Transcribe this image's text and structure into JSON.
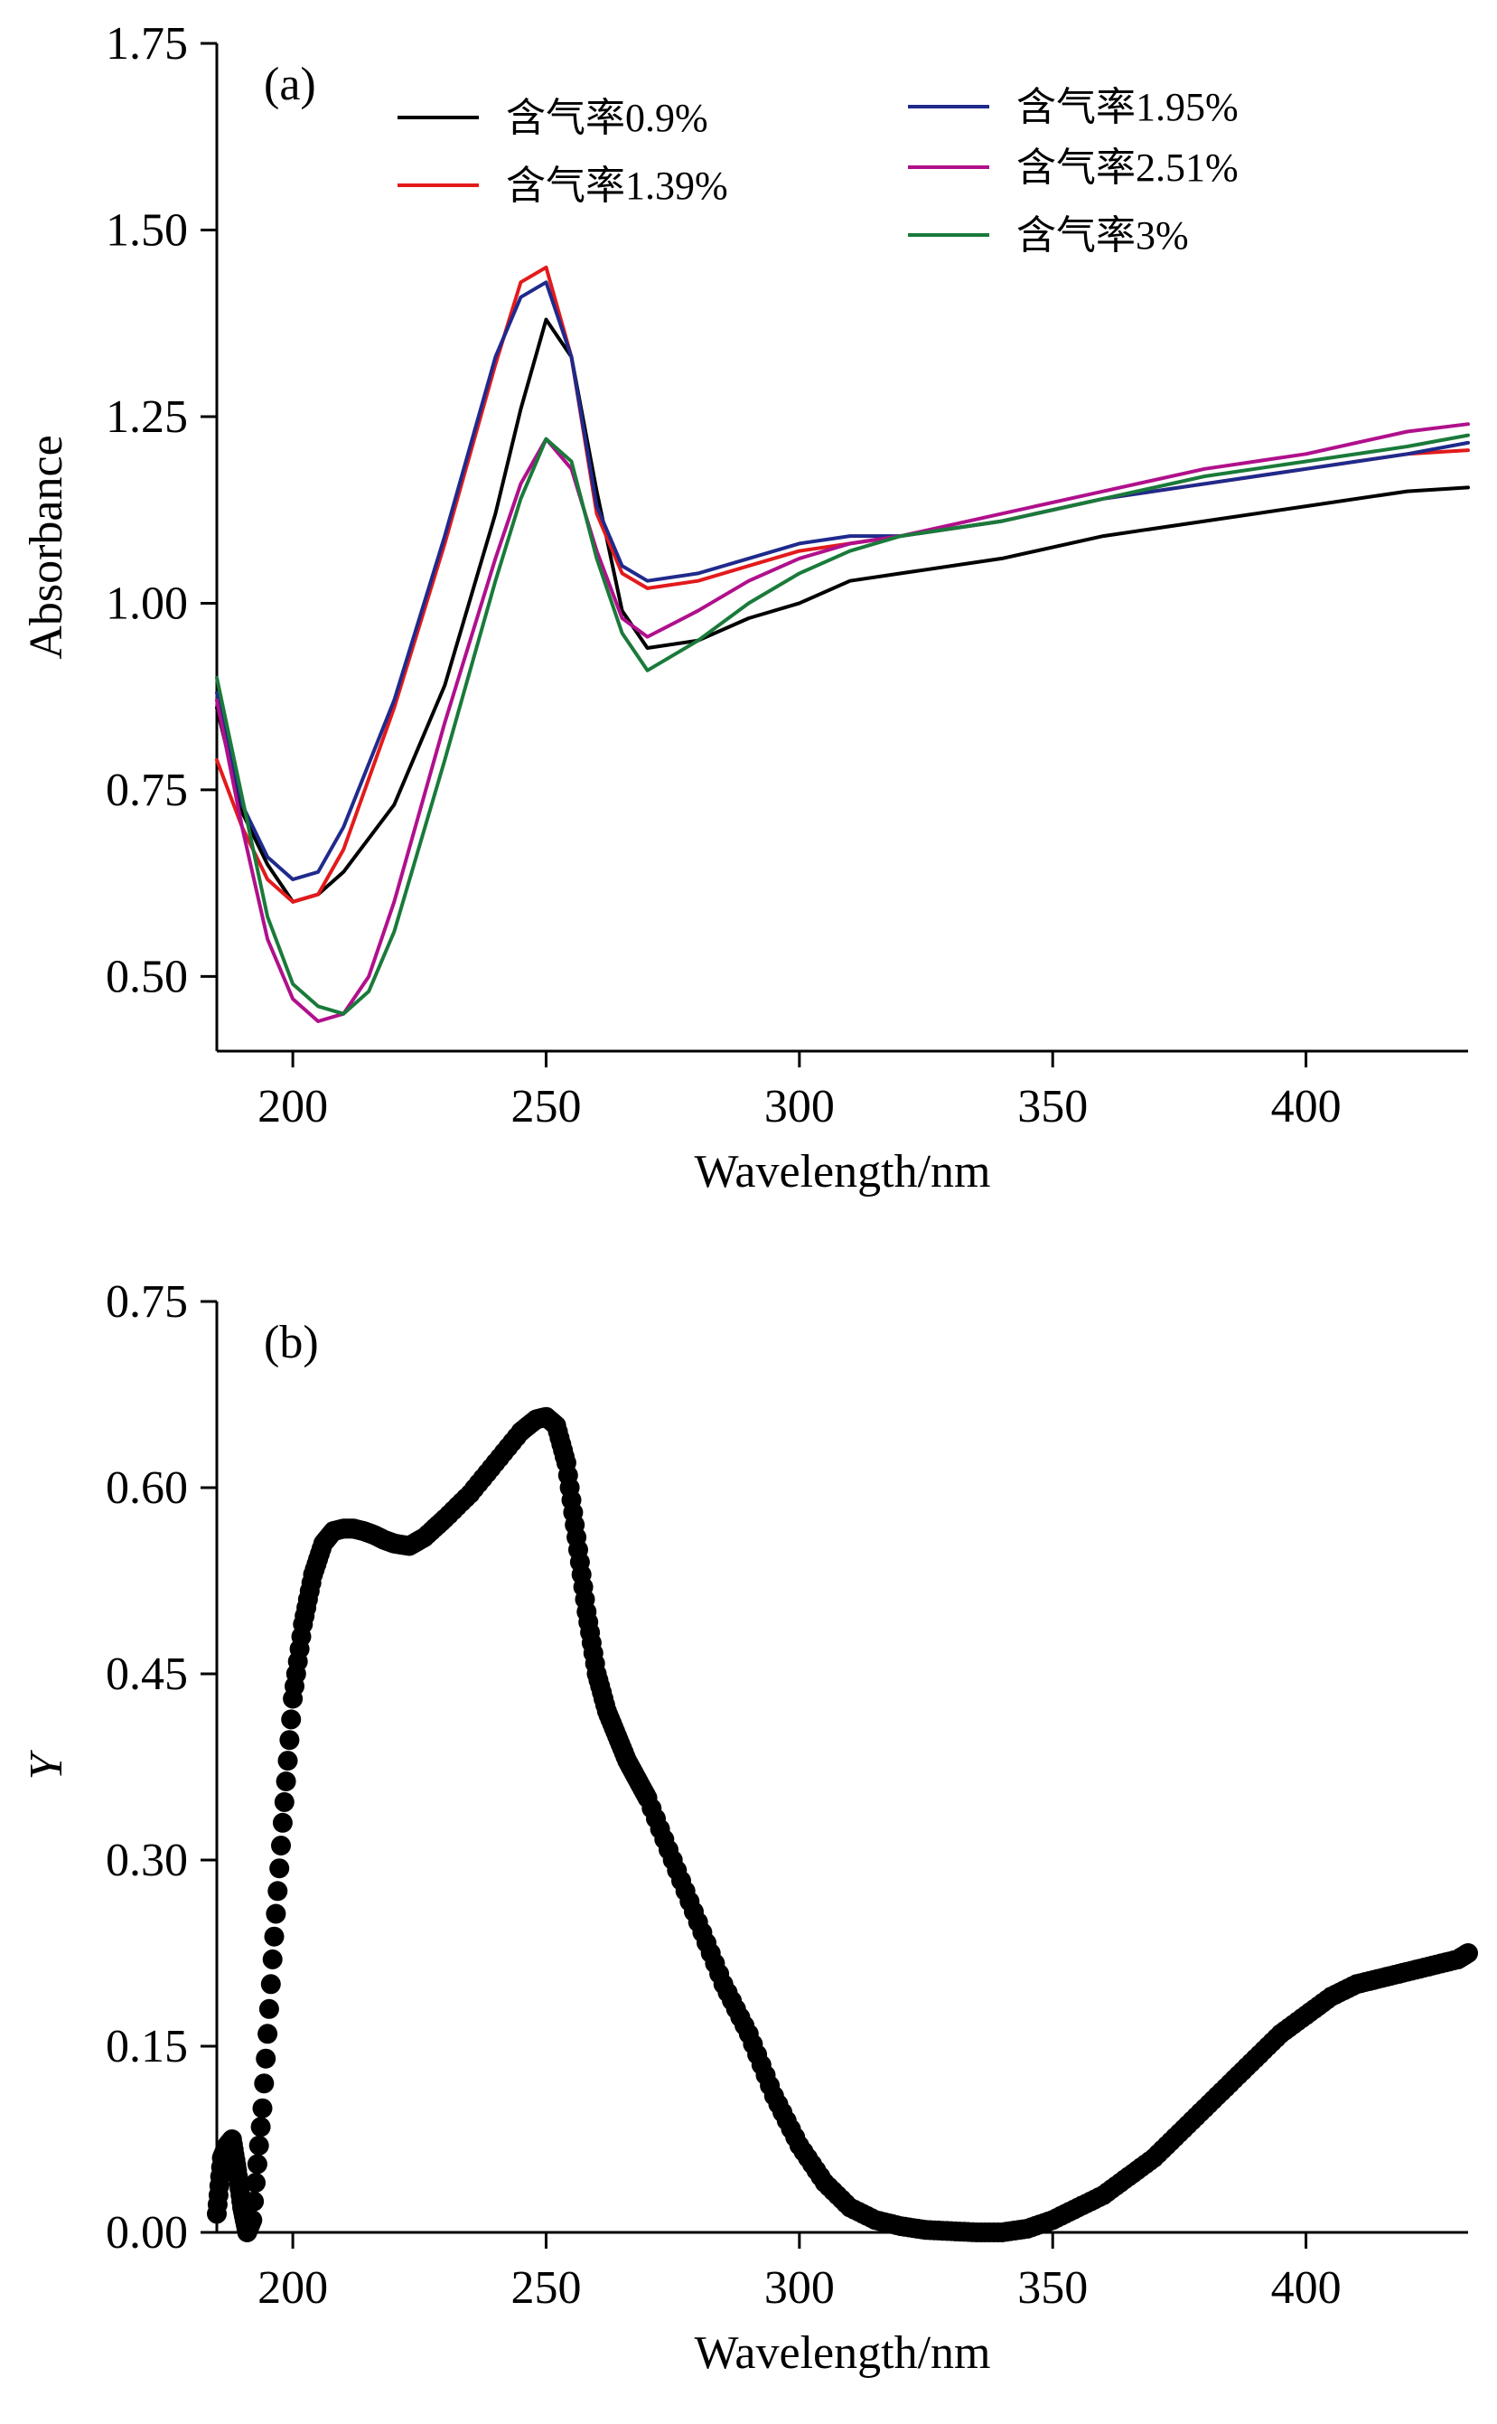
{
  "chart_data": [
    {
      "panel": "(a)",
      "type": "line",
      "xlabel": "Wavelength/nm",
      "ylabel": "Absorbance",
      "xlim": [
        185,
        432
      ],
      "ylim": [
        0.4,
        1.75
      ],
      "xticks": [
        200,
        250,
        300,
        350,
        400
      ],
      "xtick_labels": [
        "200",
        "250",
        "300",
        "350",
        "400"
      ],
      "yticks": [
        0.5,
        0.75,
        1.0,
        1.25,
        1.5,
        1.75
      ],
      "ytick_labels": [
        "0.50",
        "0.75",
        "1.00",
        "1.25",
        "1.50",
        "1.75"
      ],
      "grid": false,
      "legend_position": "top",
      "series": [
        {
          "name": "含气率0.9%",
          "color": "#000000",
          "x": [
            185,
            190,
            195,
            200,
            205,
            210,
            220,
            230,
            240,
            245,
            250,
            255,
            260,
            265,
            270,
            280,
            290,
            300,
            310,
            320,
            340,
            360,
            380,
            400,
            420,
            432
          ],
          "y": [
            0.86,
            0.72,
            0.65,
            0.6,
            0.61,
            0.64,
            0.73,
            0.89,
            1.12,
            1.26,
            1.38,
            1.33,
            1.15,
            0.99,
            0.94,
            0.95,
            0.98,
            1.0,
            1.03,
            1.04,
            1.06,
            1.09,
            1.11,
            1.13,
            1.15,
            1.155
          ]
        },
        {
          "name": "含气率1.39%",
          "color": "#e31a1c",
          "x": [
            185,
            190,
            195,
            200,
            205,
            210,
            220,
            230,
            240,
            245,
            250,
            255,
            260,
            265,
            270,
            280,
            290,
            300,
            310,
            320,
            340,
            360,
            380,
            400,
            420,
            432
          ],
          "y": [
            0.79,
            0.7,
            0.63,
            0.6,
            0.61,
            0.67,
            0.86,
            1.08,
            1.32,
            1.43,
            1.45,
            1.33,
            1.12,
            1.04,
            1.02,
            1.03,
            1.05,
            1.07,
            1.08,
            1.09,
            1.11,
            1.14,
            1.16,
            1.18,
            1.2,
            1.205
          ]
        },
        {
          "name": "含气率1.95%",
          "color": "#1f2a8c",
          "x": [
            185,
            190,
            195,
            200,
            205,
            210,
            220,
            230,
            240,
            245,
            250,
            255,
            260,
            265,
            270,
            280,
            290,
            300,
            310,
            320,
            340,
            360,
            380,
            400,
            420,
            432
          ],
          "y": [
            0.88,
            0.73,
            0.66,
            0.63,
            0.64,
            0.7,
            0.87,
            1.09,
            1.33,
            1.41,
            1.43,
            1.33,
            1.13,
            1.05,
            1.03,
            1.04,
            1.06,
            1.08,
            1.09,
            1.09,
            1.11,
            1.14,
            1.16,
            1.18,
            1.2,
            1.215
          ]
        },
        {
          "name": "含气率2.51%",
          "color": "#b0108c",
          "x": [
            185,
            190,
            195,
            200,
            205,
            210,
            215,
            220,
            230,
            240,
            245,
            250,
            255,
            260,
            265,
            270,
            280,
            290,
            300,
            310,
            320,
            340,
            360,
            380,
            400,
            420,
            432
          ],
          "y": [
            0.87,
            0.7,
            0.55,
            0.47,
            0.44,
            0.45,
            0.5,
            0.6,
            0.84,
            1.06,
            1.16,
            1.22,
            1.18,
            1.07,
            0.98,
            0.955,
            0.99,
            1.03,
            1.06,
            1.08,
            1.09,
            1.12,
            1.15,
            1.18,
            1.2,
            1.23,
            1.24
          ]
        },
        {
          "name": "含气率3%",
          "color": "#1a7a3a",
          "x": [
            185,
            190,
            195,
            200,
            205,
            210,
            215,
            220,
            230,
            240,
            245,
            250,
            255,
            260,
            265,
            270,
            280,
            290,
            300,
            310,
            320,
            340,
            360,
            380,
            400,
            420,
            432
          ],
          "y": [
            0.9,
            0.74,
            0.58,
            0.49,
            0.46,
            0.45,
            0.48,
            0.56,
            0.79,
            1.03,
            1.14,
            1.22,
            1.19,
            1.06,
            0.96,
            0.91,
            0.95,
            1.0,
            1.04,
            1.07,
            1.09,
            1.11,
            1.14,
            1.17,
            1.19,
            1.21,
            1.225
          ]
        }
      ]
    },
    {
      "panel": "(b)",
      "type": "scatter",
      "xlabel": "Wavelength/nm",
      "ylabel": "Y",
      "xlim": [
        185,
        432
      ],
      "ylim": [
        0,
        0.75
      ],
      "xticks": [
        200,
        250,
        300,
        350,
        400
      ],
      "xtick_labels": [
        "200",
        "250",
        "300",
        "350",
        "400"
      ],
      "yticks": [
        0,
        0.15,
        0.3,
        0.45,
        0.6,
        0.75
      ],
      "ytick_labels": [
        "0.00",
        "0.15",
        "0.30",
        "0.45",
        "0.60",
        "0.75"
      ],
      "grid": false,
      "marker_color": "#000000",
      "x": [
        185,
        186,
        187,
        188,
        189,
        190,
        191,
        192,
        194,
        196,
        198,
        200,
        202,
        204,
        206,
        208,
        210,
        212,
        214,
        216,
        218,
        220,
        223,
        226,
        230,
        235,
        240,
        245,
        248,
        250,
        252,
        254,
        256,
        258,
        260,
        262,
        264,
        266,
        268,
        270,
        275,
        280,
        285,
        290,
        295,
        300,
        305,
        310,
        315,
        320,
        325,
        330,
        335,
        340,
        345,
        350,
        355,
        360,
        365,
        370,
        375,
        380,
        385,
        390,
        395,
        400,
        405,
        410,
        415,
        420,
        425,
        430,
        432
      ],
      "y": [
        0.015,
        0.06,
        0.07,
        0.075,
        0.05,
        0.02,
        0.0,
        0.01,
        0.1,
        0.22,
        0.33,
        0.43,
        0.49,
        0.53,
        0.555,
        0.565,
        0.567,
        0.567,
        0.565,
        0.562,
        0.558,
        0.555,
        0.553,
        0.56,
        0.575,
        0.595,
        0.62,
        0.645,
        0.655,
        0.657,
        0.65,
        0.62,
        0.56,
        0.5,
        0.45,
        0.42,
        0.4,
        0.38,
        0.365,
        0.35,
        0.3,
        0.25,
        0.2,
        0.16,
        0.11,
        0.07,
        0.04,
        0.02,
        0.01,
        0.005,
        0.002,
        0.001,
        0.0,
        0.0,
        0.003,
        0.01,
        0.02,
        0.03,
        0.045,
        0.06,
        0.08,
        0.1,
        0.12,
        0.14,
        0.16,
        0.175,
        0.19,
        0.2,
        0.205,
        0.21,
        0.215,
        0.22,
        0.225
      ]
    }
  ]
}
